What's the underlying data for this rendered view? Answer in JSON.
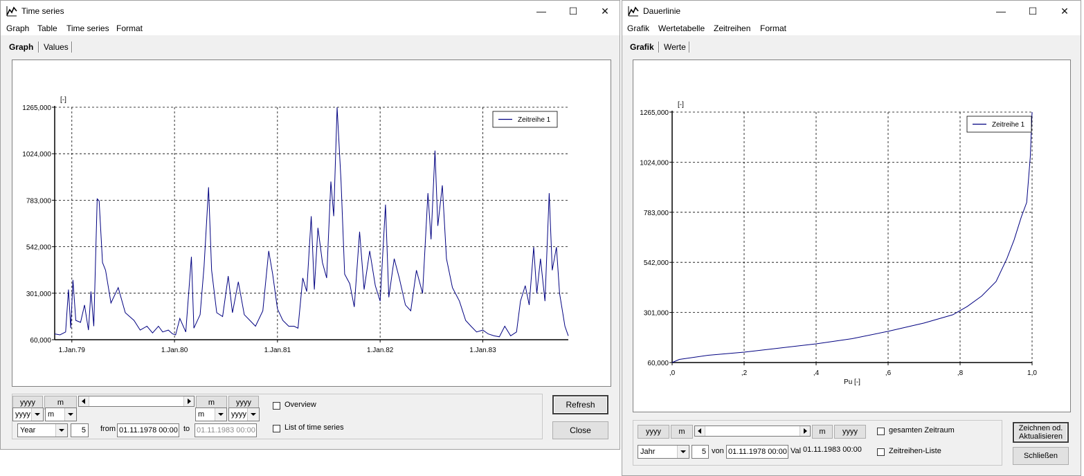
{
  "left": {
    "title": "Time series",
    "menu": [
      "Graph",
      "Table",
      "Time series",
      "Format"
    ],
    "tabs": [
      "Graph",
      "Values"
    ],
    "legend": "Zeitreihe 1",
    "unit_label": "[-]",
    "controls": {
      "yyyy_btn": "yyyy",
      "m_btn": "m",
      "combo_y": "yyyy",
      "combo_m": "m",
      "period": "Year",
      "count": "5",
      "from_label": "from",
      "from_value": "01.11.1978 00:00",
      "to_label": "to",
      "to_value": "01.11.1983 00:00",
      "overview": "Overview",
      "list": "List of time series",
      "refresh": "Refresh",
      "close": "Close"
    }
  },
  "right": {
    "title": "Dauerlinie",
    "menu": [
      "Grafik",
      "Wertetabelle",
      "Zeitreihen",
      "Format"
    ],
    "tabs": [
      "Grafik",
      "Werte"
    ],
    "legend": "Zeitreihe 1",
    "unit_label": "[-]",
    "controls": {
      "yyyy_btn": "yyyy",
      "m_btn": "m",
      "period": "Jahr",
      "count": "5",
      "from_label": "von",
      "from_value": "01.11.1978 00:00",
      "to_label": "Val",
      "to_value": "01.11.1983 00:00",
      "overview": "gesamten Zeitraum",
      "list": "Zeitreihen-Liste",
      "refresh_line1": "Zeichnen od.",
      "refresh_line2": "Aktualisieren",
      "close": "Schließen"
    }
  },
  "colors": {
    "series": "#000080",
    "grid": "#000000",
    "window_bg": "#f0f0f0"
  },
  "chart_data": [
    {
      "type": "line",
      "title": "",
      "xlabel": "",
      "ylabel": "[-]",
      "yticks": [
        "60,000",
        "301,000",
        "542,000",
        "783,000",
        "1024,000",
        "1265,000"
      ],
      "xticks": [
        "1.Jan.79",
        "1.Jan.80",
        "1.Jan.81",
        "1.Jan.82",
        "1.Jan.83"
      ],
      "ylim": [
        60,
        1265
      ],
      "xlim": [
        "1978-11-01",
        "1983-11-01"
      ],
      "grid": true,
      "legend": "top-right",
      "series": [
        {
          "name": "Zeitreihe 1",
          "points": [
            [
              "1978-11-01",
              90
            ],
            [
              "1978-11-20",
              85
            ],
            [
              "1978-12-10",
              100
            ],
            [
              "1978-12-20",
              320
            ],
            [
              "1978-12-28",
              120
            ],
            [
              "1979-01-05",
              370
            ],
            [
              "1979-01-15",
              160
            ],
            [
              "1979-02-01",
              150
            ],
            [
              "1979-02-15",
              240
            ],
            [
              "1979-03-01",
              110
            ],
            [
              "1979-03-10",
              310
            ],
            [
              "1979-03-20",
              130
            ],
            [
              "1979-04-01",
              790
            ],
            [
              "1979-04-08",
              780
            ],
            [
              "1979-04-20",
              460
            ],
            [
              "1979-05-01",
              420
            ],
            [
              "1979-05-20",
              250
            ],
            [
              "1979-06-15",
              330
            ],
            [
              "1979-07-10",
              200
            ],
            [
              "1979-08-10",
              160
            ],
            [
              "1979-09-01",
              110
            ],
            [
              "1979-09-25",
              130
            ],
            [
              "1979-10-15",
              95
            ],
            [
              "1979-11-05",
              130
            ],
            [
              "1979-11-20",
              100
            ],
            [
              "1979-12-10",
              110
            ],
            [
              "1979-12-25",
              90
            ],
            [
              "1980-01-05",
              85
            ],
            [
              "1980-01-20",
              170
            ],
            [
              "1980-02-10",
              100
            ],
            [
              "1980-03-01",
              490
            ],
            [
              "1980-03-10",
              120
            ],
            [
              "1980-04-01",
              190
            ],
            [
              "1980-04-15",
              440
            ],
            [
              "1980-05-01",
              850
            ],
            [
              "1980-05-12",
              420
            ],
            [
              "1980-05-30",
              200
            ],
            [
              "1980-06-20",
              180
            ],
            [
              "1980-07-10",
              390
            ],
            [
              "1980-07-25",
              200
            ],
            [
              "1980-08-15",
              360
            ],
            [
              "1980-09-05",
              190
            ],
            [
              "1980-09-25",
              160
            ],
            [
              "1980-10-15",
              130
            ],
            [
              "1980-11-10",
              210
            ],
            [
              "1980-12-01",
              520
            ],
            [
              "1980-12-15",
              400
            ],
            [
              "1981-01-01",
              220
            ],
            [
              "1981-01-20",
              160
            ],
            [
              "1981-02-10",
              130
            ],
            [
              "1981-03-01",
              130
            ],
            [
              "1981-03-15",
              120
            ],
            [
              "1981-04-01",
              380
            ],
            [
              "1981-04-15",
              310
            ],
            [
              "1981-05-01",
              700
            ],
            [
              "1981-05-12",
              320
            ],
            [
              "1981-05-25",
              640
            ],
            [
              "1981-06-10",
              460
            ],
            [
              "1981-06-25",
              380
            ],
            [
              "1981-07-10",
              880
            ],
            [
              "1981-07-20",
              700
            ],
            [
              "1981-08-01",
              1265
            ],
            [
              "1981-08-15",
              880
            ],
            [
              "1981-08-28",
              400
            ],
            [
              "1981-09-15",
              350
            ],
            [
              "1981-10-01",
              230
            ],
            [
              "1981-10-20",
              620
            ],
            [
              "1981-11-05",
              320
            ],
            [
              "1981-11-25",
              520
            ],
            [
              "1981-12-15",
              340
            ],
            [
              "1982-01-01",
              260
            ],
            [
              "1982-01-20",
              760
            ],
            [
              "1982-02-01",
              280
            ],
            [
              "1982-02-20",
              480
            ],
            [
              "1982-03-10",
              380
            ],
            [
              "1982-04-01",
              240
            ],
            [
              "1982-04-20",
              210
            ],
            [
              "1982-05-10",
              420
            ],
            [
              "1982-06-01",
              300
            ],
            [
              "1982-06-20",
              820
            ],
            [
              "1982-07-01",
              580
            ],
            [
              "1982-07-15",
              1040
            ],
            [
              "1982-07-25",
              650
            ],
            [
              "1982-08-10",
              860
            ],
            [
              "1982-08-25",
              480
            ],
            [
              "1982-09-15",
              330
            ],
            [
              "1982-10-10",
              260
            ],
            [
              "1982-11-01",
              160
            ],
            [
              "1982-11-20",
              130
            ],
            [
              "1982-12-10",
              100
            ],
            [
              "1983-01-01",
              110
            ],
            [
              "1983-01-20",
              90
            ],
            [
              "1983-02-10",
              80
            ],
            [
              "1983-03-01",
              75
            ],
            [
              "1983-03-20",
              130
            ],
            [
              "1983-04-10",
              80
            ],
            [
              "1983-05-01",
              100
            ],
            [
              "1983-05-15",
              260
            ],
            [
              "1983-06-01",
              340
            ],
            [
              "1983-06-15",
              240
            ],
            [
              "1983-07-01",
              540
            ],
            [
              "1983-07-12",
              300
            ],
            [
              "1983-07-25",
              480
            ],
            [
              "1983-08-10",
              260
            ],
            [
              "1983-08-25",
              820
            ],
            [
              "1983-09-05",
              420
            ],
            [
              "1983-09-20",
              540
            ],
            [
              "1983-10-01",
              300
            ],
            [
              "1983-10-20",
              130
            ],
            [
              "1983-11-01",
              80
            ]
          ]
        }
      ]
    },
    {
      "type": "line",
      "title": "",
      "xlabel": "Pu [-]",
      "ylabel": "[-]",
      "yticks": [
        "60,000",
        "301,000",
        "542,000",
        "783,000",
        "1024,000",
        "1265,000"
      ],
      "xticks": [
        ",0",
        ",2",
        ",4",
        ",6",
        ",8",
        "1,0"
      ],
      "xlim": [
        0,
        1
      ],
      "ylim": [
        60,
        1265
      ],
      "grid": true,
      "legend": "top-right",
      "series": [
        {
          "name": "Zeitreihe 1",
          "x": [
            0,
            0.02,
            0.1,
            0.2,
            0.3,
            0.4,
            0.5,
            0.6,
            0.7,
            0.78,
            0.82,
            0.86,
            0.9,
            0.93,
            0.95,
            0.97,
            0.985,
            0.995,
            1.0
          ],
          "y": [
            60,
            75,
            95,
            110,
            130,
            150,
            175,
            210,
            250,
            290,
            330,
            380,
            450,
            560,
            650,
            760,
            830,
            1050,
            1265
          ]
        }
      ]
    }
  ]
}
